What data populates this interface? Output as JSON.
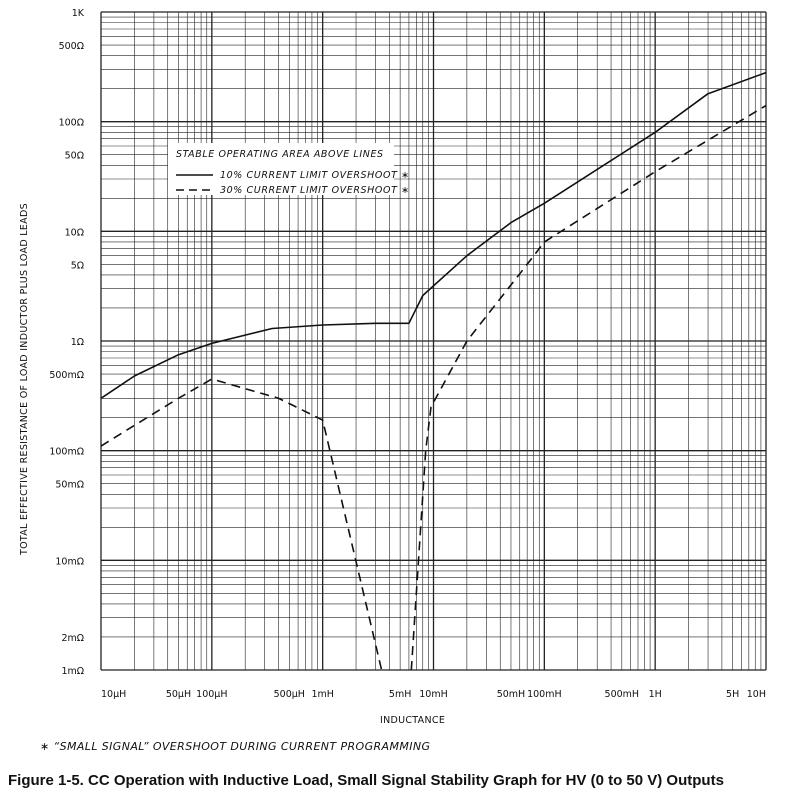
{
  "chart_data": {
    "type": "line",
    "xscale": "log",
    "yscale": "log",
    "xlim": [
      1e-05,
      10
    ],
    "ylim": [
      0.001,
      1000
    ],
    "x_ticks": [
      {
        "value": 1e-05,
        "label": "10μH"
      },
      {
        "value": 5e-05,
        "label": "50μH"
      },
      {
        "value": 0.0001,
        "label": "100μH"
      },
      {
        "value": 0.0005,
        "label": "500μH"
      },
      {
        "value": 0.001,
        "label": "1mH"
      },
      {
        "value": 0.005,
        "label": "5mH"
      },
      {
        "value": 0.01,
        "label": "10mH"
      },
      {
        "value": 0.05,
        "label": "50mH"
      },
      {
        "value": 0.1,
        "label": "100mH"
      },
      {
        "value": 0.5,
        "label": "500mH"
      },
      {
        "value": 1,
        "label": "1H"
      },
      {
        "value": 5,
        "label": "5H"
      },
      {
        "value": 10,
        "label": "10H"
      }
    ],
    "y_ticks": [
      {
        "value": 1000,
        "label": "1K"
      },
      {
        "value": 500,
        "label": "500Ω"
      },
      {
        "value": 100,
        "label": "100Ω"
      },
      {
        "value": 50,
        "label": "50Ω"
      },
      {
        "value": 10,
        "label": "10Ω"
      },
      {
        "value": 5,
        "label": "5Ω"
      },
      {
        "value": 1,
        "label": "1Ω"
      },
      {
        "value": 0.5,
        "label": "500mΩ"
      },
      {
        "value": 0.1,
        "label": "100mΩ"
      },
      {
        "value": 0.05,
        "label": "50mΩ"
      },
      {
        "value": 0.01,
        "label": "10mΩ"
      },
      {
        "value": 0.002,
        "label": "2mΩ"
      },
      {
        "value": 0.001,
        "label": "1mΩ"
      }
    ],
    "xlabel": "INDUCTANCE",
    "ylabel": "TOTAL EFFECTIVE RESISTANCE OF LOAD INDUCTOR PLUS LOAD LEADS",
    "legend_title": "STABLE OPERATING AREA ABOVE LINES",
    "series": [
      {
        "name": "10% CURRENT LIMIT OVERSHOOT ∗",
        "style": "solid",
        "x": [
          1e-05,
          2e-05,
          5e-05,
          0.0001,
          0.00035,
          0.001,
          0.003,
          0.006,
          0.008,
          0.02,
          0.05,
          0.1,
          1,
          3,
          10
        ],
        "y": [
          0.3,
          0.48,
          0.75,
          0.95,
          1.3,
          1.4,
          1.45,
          1.45,
          2.6,
          6,
          12,
          18,
          80,
          180,
          280
        ]
      },
      {
        "name": "30% CURRENT LIMIT OVERSHOOT ∗",
        "style": "dashed",
        "segments": [
          {
            "x": [
              1e-05,
              2e-05,
              5e-05,
              0.0001,
              0.0004,
              0.001,
              0.0034
            ],
            "y": [
              0.11,
              0.17,
              0.3,
              0.45,
              0.3,
              0.19,
              0.001
            ]
          },
          {
            "x": [
              0.0063,
              0.0085,
              0.0095,
              0.02,
              0.07,
              0.1,
              1,
              10
            ],
            "y": [
              0.001,
              0.1,
              0.25,
              1,
              5,
              8,
              35,
              140
            ]
          }
        ]
      }
    ]
  },
  "footnote": "∗ “SMALL SIGNAL” OVERSHOOT DURING CURRENT PROGRAMMING",
  "caption": "Figure 1-5.  CC Operation with Inductive Load, Small Signal Stability Graph for HV (0 to 50 V) Outputs"
}
